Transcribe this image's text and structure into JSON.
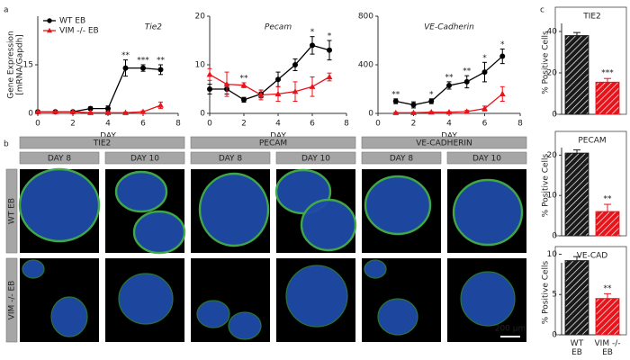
{
  "panel_labels": [
    "a",
    "b",
    "c"
  ],
  "chart_data": [
    {
      "type": "line",
      "title": "Tie2",
      "ylabel": [
        "Gene Expression",
        "[mRNA/Gapdh]"
      ],
      "xlabel": "DAY",
      "x": [
        0,
        1,
        2,
        3,
        4,
        5,
        6,
        7
      ],
      "xlim": [
        0,
        8
      ],
      "xticks": [
        0,
        2,
        4,
        6,
        8
      ],
      "ylim": [
        0,
        30
      ],
      "yticks": [
        0,
        15
      ],
      "legend": "upper left",
      "series": [
        {
          "name": "WT EB",
          "color": "#000000",
          "marker": "circle",
          "values": [
            0.5,
            0.5,
            0.5,
            1.5,
            1.5,
            14,
            14,
            13.5
          ],
          "errors": [
            0.3,
            0.3,
            0.3,
            0.5,
            0.8,
            2.5,
            1,
            1.5
          ]
        },
        {
          "name": "VIM -/- EB",
          "color": "#e8141b",
          "marker": "triangle",
          "values": [
            0.5,
            0.5,
            0.5,
            0.2,
            0.2,
            0.2,
            0.5,
            2.5
          ],
          "errors": [
            0.2,
            0.2,
            0.2,
            0.2,
            0.2,
            0.2,
            0.3,
            1
          ]
        }
      ],
      "annotations": [
        {
          "x": 5,
          "text": "**"
        },
        {
          "x": 6,
          "text": "***"
        },
        {
          "x": 7,
          "text": "**"
        }
      ]
    },
    {
      "type": "line",
      "title": "Pecam",
      "xlabel": "DAY",
      "x": [
        0,
        1,
        2,
        3,
        4,
        5,
        6,
        7
      ],
      "xlim": [
        0,
        8
      ],
      "xticks": [
        0,
        2,
        4,
        6,
        8
      ],
      "ylim": [
        0,
        20
      ],
      "yticks": [
        0,
        10,
        20
      ],
      "series": [
        {
          "color": "#000000",
          "marker": "circle",
          "values": [
            5,
            5,
            2.8,
            4,
            7,
            10,
            14,
            13
          ],
          "errors": [
            1,
            1,
            0.5,
            0.8,
            1.5,
            1.2,
            1.8,
            2
          ]
        },
        {
          "color": "#e8141b",
          "marker": "triangle",
          "values": [
            8,
            6,
            5.8,
            3.8,
            4,
            4.5,
            5.5,
            7.5
          ],
          "errors": [
            1.2,
            2.5,
            0.5,
            1,
            1.5,
            2,
            2,
            0.8
          ]
        }
      ],
      "annotations": [
        {
          "x": 2,
          "text": "**"
        },
        {
          "x": 6,
          "text": "*"
        },
        {
          "x": 7,
          "text": "*"
        }
      ]
    },
    {
      "type": "line",
      "title": "VE-Cadherin",
      "xlabel": "DAY",
      "x": [
        1,
        2,
        3,
        4,
        5,
        6,
        7
      ],
      "xlim": [
        0,
        8
      ],
      "xticks": [
        0,
        2,
        4,
        6,
        8
      ],
      "ylim": [
        0,
        800
      ],
      "yticks": [
        0,
        400,
        800
      ],
      "series": [
        {
          "color": "#000000",
          "marker": "circle",
          "values": [
            100,
            70,
            100,
            230,
            260,
            340,
            470
          ],
          "errors": [
            20,
            25,
            20,
            30,
            50,
            80,
            60
          ]
        },
        {
          "color": "#e8141b",
          "marker": "triangle",
          "values": [
            5,
            5,
            10,
            10,
            15,
            40,
            160
          ],
          "errors": [
            5,
            5,
            5,
            5,
            10,
            20,
            60
          ]
        }
      ],
      "annotations": [
        {
          "x": 1,
          "text": "**"
        },
        {
          "x": 3,
          "text": "*"
        },
        {
          "x": 4,
          "text": "**"
        },
        {
          "x": 5,
          "text": "**"
        },
        {
          "x": 6,
          "text": "*"
        },
        {
          "x": 7,
          "text": "*"
        }
      ]
    },
    {
      "type": "bar",
      "title": "TIE2",
      "ylabel": "% Positive Cells",
      "ylim": [
        0,
        50
      ],
      "yticks": [
        0,
        20,
        40
      ],
      "values": [
        38,
        15.5
      ],
      "errors": [
        1.5,
        1.8
      ],
      "colors": [
        "#1a1a1a",
        "#e8141b"
      ],
      "annotations": [
        {
          "index": 1,
          "text": "***"
        }
      ]
    },
    {
      "type": "bar",
      "title": "PECAM",
      "ylabel": "% Positive Cells",
      "ylim": [
        0,
        25
      ],
      "yticks": [
        0,
        10,
        20
      ],
      "values": [
        20.5,
        6
      ],
      "errors": [
        0.8,
        1.8
      ],
      "colors": [
        "#1a1a1a",
        "#e8141b"
      ],
      "annotations": [
        {
          "index": 1,
          "text": "**"
        }
      ]
    },
    {
      "type": "bar",
      "title": "VE-CAD",
      "ylabel": "% Positive Cells",
      "ylim": [
        0,
        10.5
      ],
      "yticks": [
        0,
        5,
        10
      ],
      "categories": [
        "WT EB",
        "VIM -/- EB"
      ],
      "values": [
        9.2,
        4.5
      ],
      "errors": [
        0.5,
        0.6
      ],
      "colors": [
        "#1a1a1a",
        "#e8141b"
      ],
      "annotations": [
        {
          "index": 1,
          "text": "**"
        }
      ]
    }
  ],
  "micrographs": {
    "groups": [
      "TIE2",
      "PECAM",
      "VE-CADHERIN"
    ],
    "columns": [
      "DAY 8",
      "DAY 10",
      "DAY 8",
      "DAY 10",
      "DAY 8",
      "DAY 10"
    ],
    "rows": [
      "WT EB",
      "VIM -/- EB"
    ],
    "scale_bar": "200 µm"
  }
}
